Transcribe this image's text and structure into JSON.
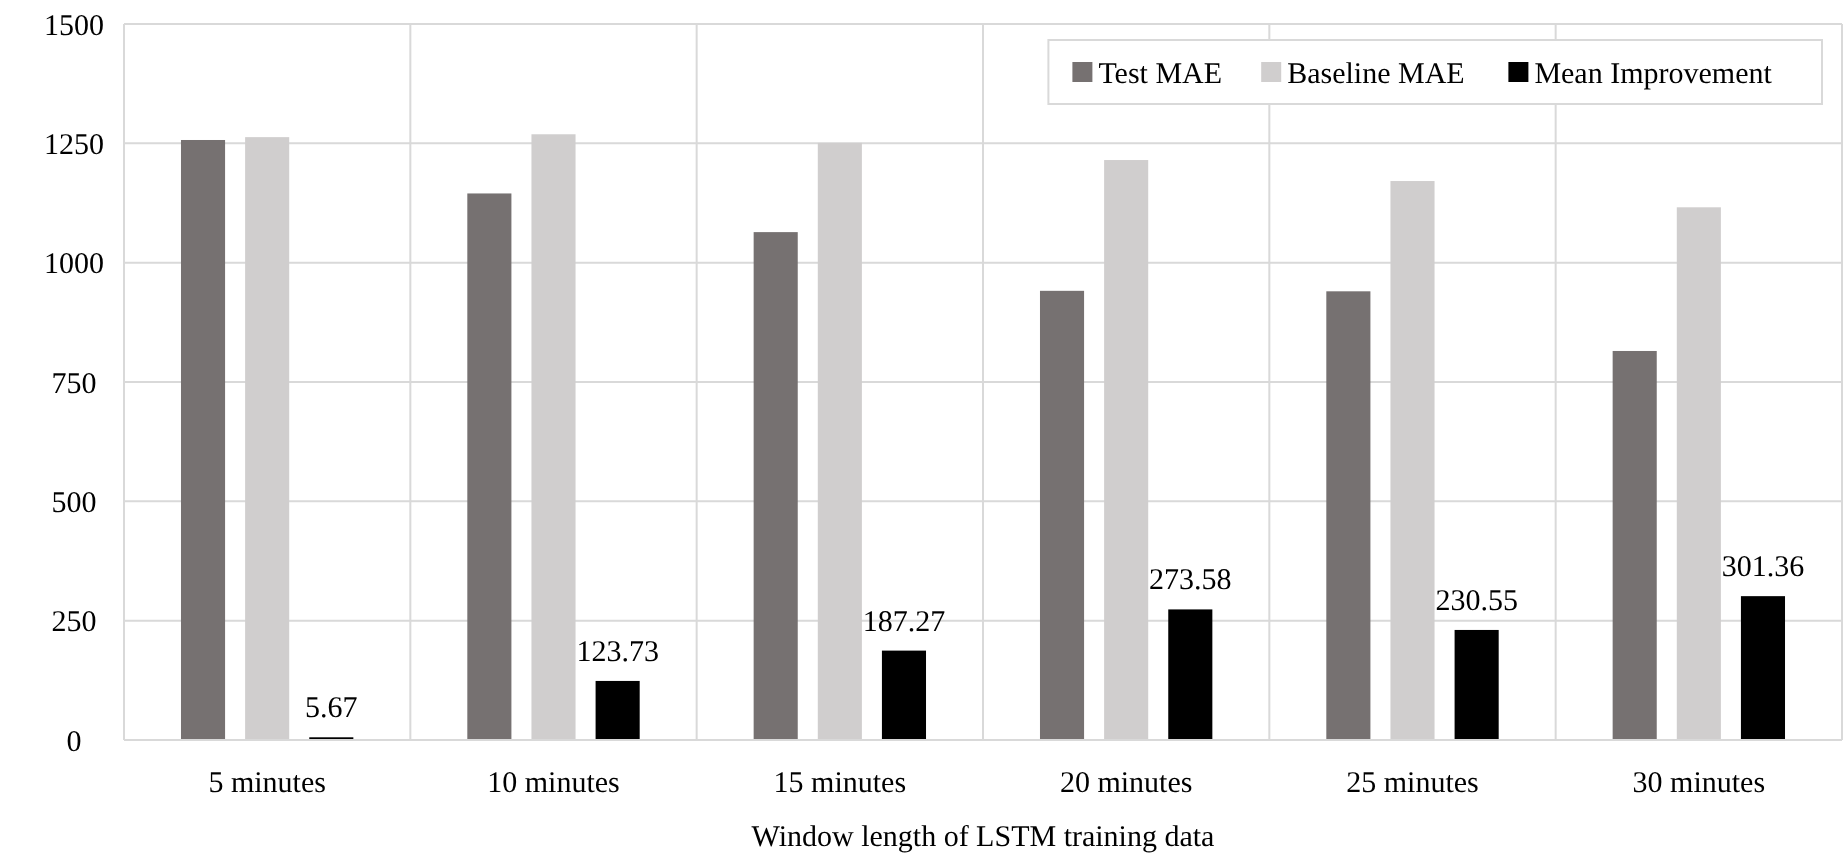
{
  "chart_data": {
    "type": "bar",
    "xlabel": "Window length of LSTM training data",
    "categories": [
      "5 minutes",
      "10 minutes",
      "15 minutes",
      "20 minutes",
      "25 minutes",
      "30 minutes"
    ],
    "series": [
      {
        "name": "Test MAE",
        "color": "#767171",
        "values": [
          1257,
          1145,
          1064,
          941,
          940,
          815
        ]
      },
      {
        "name": "Baseline MAE",
        "color": "#d0cece",
        "values": [
          1263,
          1269,
          1251,
          1215,
          1171,
          1116
        ]
      },
      {
        "name": "Mean Improvement",
        "color": "#000000",
        "values": [
          5.67,
          123.73,
          187.27,
          273.58,
          230.55,
          301.36
        ],
        "value_labels": [
          "5.67",
          "123.73",
          "187.27",
          "273.58",
          "230.55",
          "301.36"
        ]
      }
    ],
    "ylim": [
      0,
      1500
    ],
    "yticks": [
      0,
      250,
      500,
      750,
      1000,
      1250,
      1500
    ],
    "grid": true,
    "legend": "top right"
  }
}
